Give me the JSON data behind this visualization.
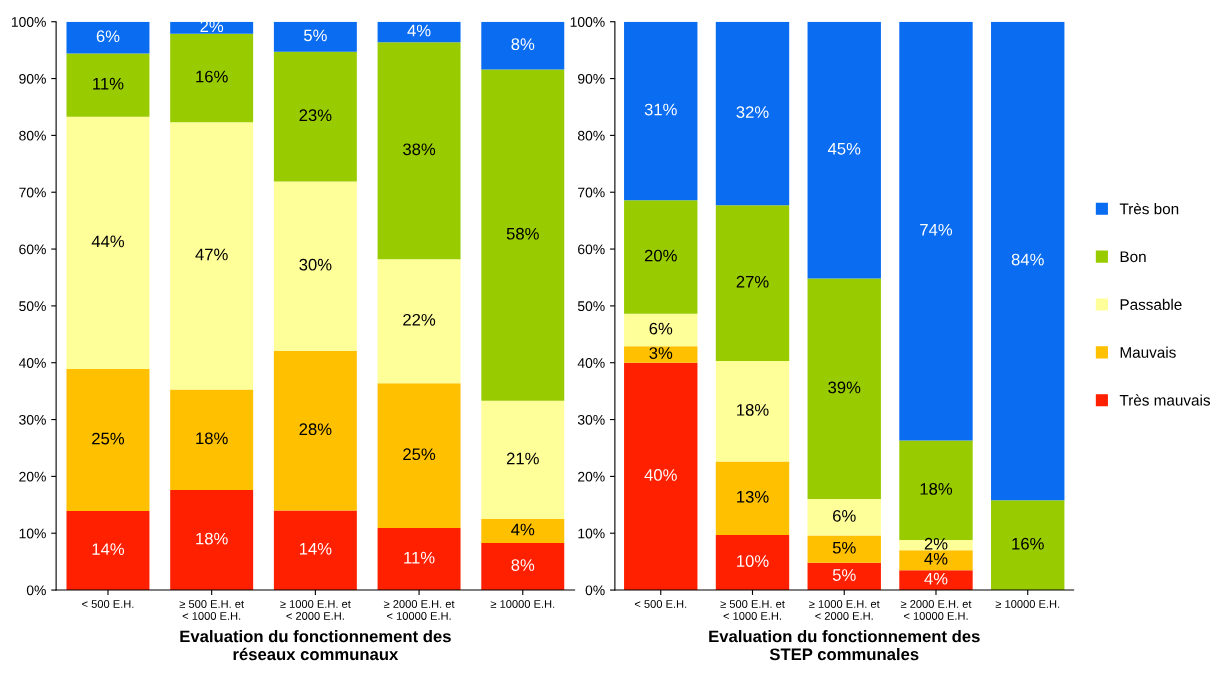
{
  "chart_data": [
    {
      "type": "bar",
      "stacked": true,
      "title": "Evaluation du fonctionnement des\nréseaux communaux",
      "categories": [
        "< 500 E.H.",
        "≥ 500 E.H. et\n< 1000 E.H.",
        "≥ 1000 E.H. et\n< 2000 E.H.",
        "≥ 2000 E.H. et\n< 10000 E.H.",
        "≥ 10000 E.H."
      ],
      "series": [
        {
          "color": "#ff2000",
          "values": [
            13.9,
            17.6,
            14.0,
            10.9,
            8.3
          ],
          "value_labels": [
            "14%",
            "18%",
            "14%",
            "11%",
            "8%"
          ]
        },
        {
          "color": "#ffc000",
          "values": [
            25.0,
            17.7,
            28.1,
            25.5,
            4.2
          ],
          "value_labels": [
            "25%",
            "18%",
            "28%",
            "25%",
            "4%"
          ]
        },
        {
          "color": "#ffff99",
          "values": [
            44.4,
            47.0,
            29.8,
            21.8,
            20.8
          ],
          "value_labels": [
            "44%",
            "47%",
            "30%",
            "22%",
            "21%"
          ]
        },
        {
          "color": "#99cc00",
          "values": [
            11.1,
            15.6,
            22.8,
            38.2,
            58.3
          ],
          "value_labels": [
            "11%",
            "16%",
            "23%",
            "38%",
            "58%"
          ]
        },
        {
          "color": "#0a6cf0",
          "values": [
            5.6,
            2.1,
            5.3,
            3.6,
            8.4
          ],
          "value_labels": [
            "6%",
            "2%",
            "5%",
            "4%",
            "8%"
          ]
        }
      ],
      "ylim": [
        0,
        100
      ],
      "yticks": [
        {
          "value": 0,
          "label": "0%"
        },
        {
          "value": 10,
          "label": "10%"
        },
        {
          "value": 20,
          "label": "20%"
        },
        {
          "value": 30,
          "label": "30%"
        },
        {
          "value": 40,
          "label": "40%"
        },
        {
          "value": 50,
          "label": "50%"
        },
        {
          "value": 60,
          "label": "60%"
        },
        {
          "value": 70,
          "label": "70%"
        },
        {
          "value": 80,
          "label": "80%"
        },
        {
          "value": 90,
          "label": "90%"
        },
        {
          "value": 100,
          "label": "100%"
        }
      ],
      "grid": false
    },
    {
      "type": "bar",
      "stacked": true,
      "title": "Evaluation du fonctionnement des\nSTEP communales",
      "categories": [
        "< 500 E.H.",
        "≥ 500 E.H. et\n< 1000 E.H.",
        "≥ 1000 E.H. et\n< 2000 E.H.",
        "≥ 2000 E.H. et\n< 10000 E.H.",
        "≥ 10000 E.H."
      ],
      "series": [
        {
          "name": "Très mauvais",
          "color": "#ff2000",
          "values": [
            40.0,
            9.7,
            4.8,
            3.5,
            0
          ],
          "value_labels": [
            "40%",
            "10%",
            "5%",
            "4%",
            null
          ]
        },
        {
          "name": "Mauvais",
          "color": "#ffc000",
          "values": [
            2.9,
            12.9,
            4.8,
            3.5,
            0
          ],
          "value_labels": [
            "3%",
            "13%",
            "5%",
            "4%",
            null
          ]
        },
        {
          "name": "Passable",
          "color": "#ffff99",
          "values": [
            5.7,
            17.7,
            6.4,
            1.8,
            0
          ],
          "value_labels": [
            "6%",
            "18%",
            "6%",
            "2%",
            null
          ]
        },
        {
          "name": "Bon",
          "color": "#99cc00",
          "values": [
            20.0,
            27.4,
            38.8,
            17.5,
            15.8
          ],
          "value_labels": [
            "20%",
            "27%",
            "39%",
            "18%",
            "16%"
          ]
        },
        {
          "name": "Très bon",
          "color": "#0a6cf0",
          "values": [
            31.4,
            32.3,
            45.2,
            73.7,
            84.2
          ],
          "value_labels": [
            "31%",
            "32%",
            "45%",
            "74%",
            "84%"
          ]
        }
      ],
      "ylim": [
        0,
        100
      ],
      "yticks": [
        {
          "value": 0,
          "label": "0%"
        },
        {
          "value": 10,
          "label": "10%"
        },
        {
          "value": 20,
          "label": "20%"
        },
        {
          "value": 30,
          "label": "30%"
        },
        {
          "value": 40,
          "label": "40%"
        },
        {
          "value": 50,
          "label": "50%"
        },
        {
          "value": 60,
          "label": "60%"
        },
        {
          "value": 70,
          "label": "70%"
        },
        {
          "value": 80,
          "label": "80%"
        },
        {
          "value": 90,
          "label": "90%"
        },
        {
          "value": 100,
          "label": "100%"
        }
      ],
      "grid": false,
      "legend": "right"
    }
  ]
}
